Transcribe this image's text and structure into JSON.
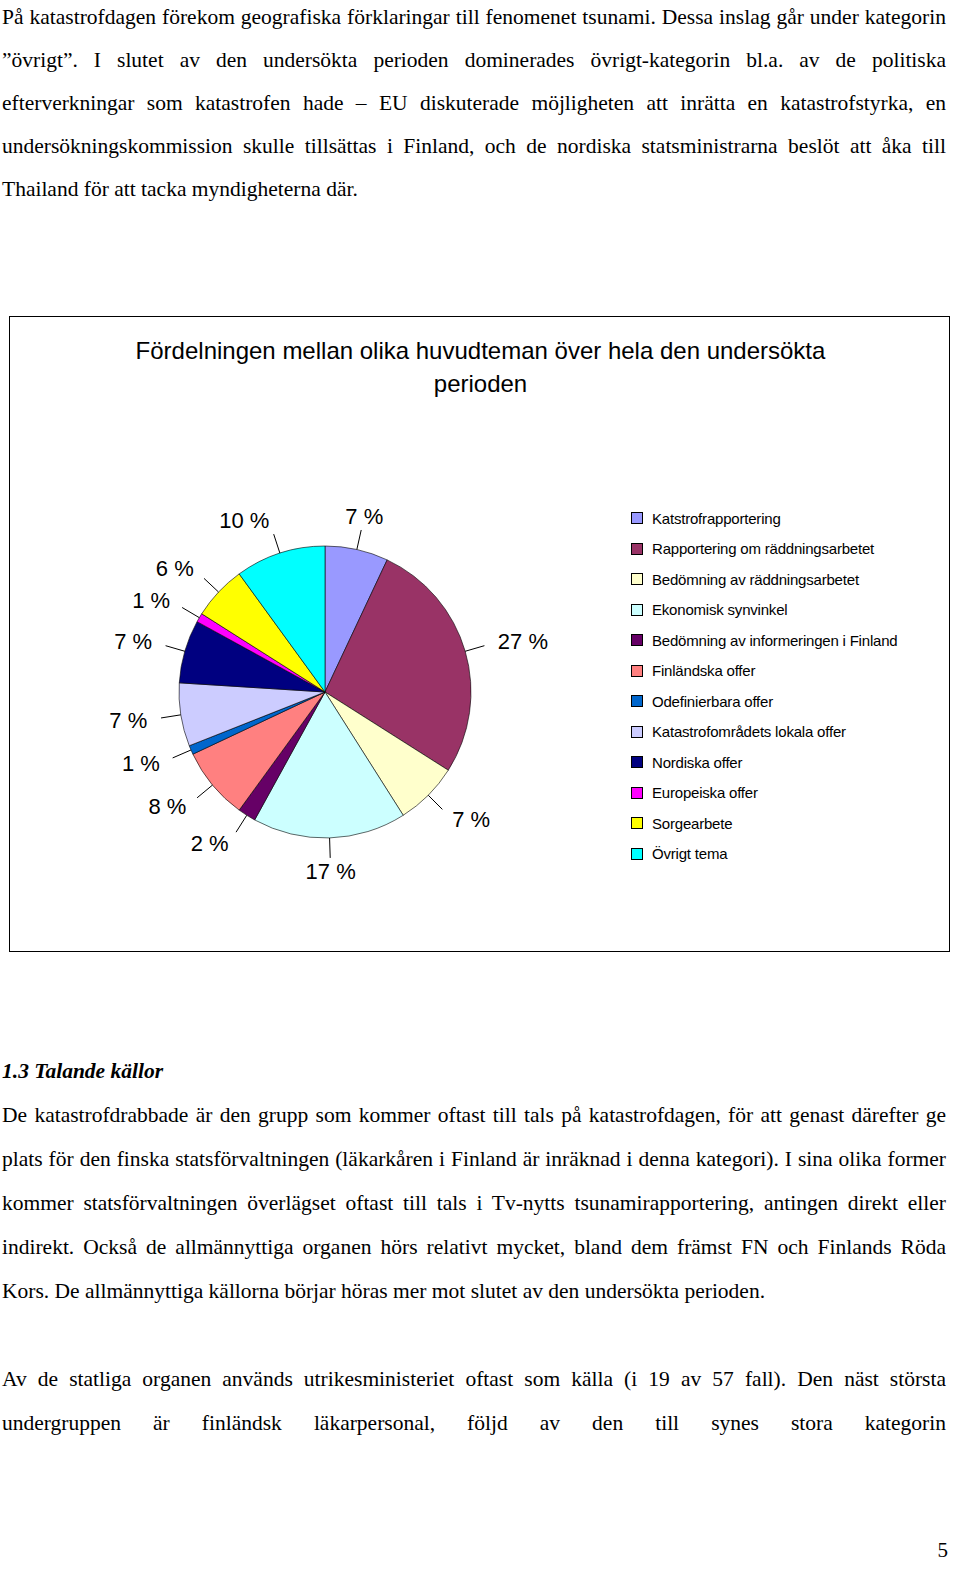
{
  "paragraphs_top": [
    "På katastrofdagen förekom geografiska förklaringar till fenomenet tsunami. Dessa inslag går under kategorin ”övrigt”. I slutet av den undersökta perioden dominerades övrigt-kategorin bl.a. av de politiska efterverkningar som katastrofen hade – EU diskuterade möjligheten att inrätta en katastrofstyrka, en undersökningskommission skulle tillsättas i Finland, och de nordiska statsministrarna beslöt att åka till Thailand för att tacka myndigheterna där."
  ],
  "chart_data": {
    "type": "pie",
    "title": "Fördelningen mellan olika huvudteman över hela den undersökta perioden",
    "categories": [
      "Katstrofrapportering",
      "Rapportering om räddningsarbetet",
      "Bedömning av räddningsarbetet",
      "Ekonomisk synvinkel",
      "Bedömning av informeringen i Finland",
      "Finländska offer",
      "Odefinierbara offer",
      "Katastrofområdets lokala offer",
      "Nordiska offer",
      "Europeiska offer",
      "Sorgearbete",
      "Övrigt tema"
    ],
    "values": [
      7,
      27,
      7,
      17,
      2,
      8,
      1,
      7,
      7,
      1,
      6,
      10
    ],
    "value_labels": [
      "7 %",
      "27 %",
      "7 %",
      "17 %",
      "2 %",
      "8 %",
      "1 %",
      "7 %",
      "7 %",
      "1 %",
      "6 %",
      "10 %"
    ],
    "colors": [
      "#9999FF",
      "#993366",
      "#FFFFCC",
      "#CCFFFF",
      "#660066",
      "#FF8080",
      "#0066CC",
      "#CCCCFF",
      "#000080",
      "#FF00FF",
      "#FFFF00",
      "#00FFFF"
    ],
    "data_labels": true,
    "legend": "right"
  },
  "section": {
    "heading": "1.3 Talande källor",
    "paragraphs": [
      "De katastrofdrabbade är den grupp som kommer oftast till tals på katastrofdagen, för att genast därefter ge plats för den finska statsförvaltningen (läkarkåren i Finland är inräknad i denna kategori). I sina olika former kommer statsförvaltningen överlägset oftast till tals i Tv-nytts tsunamirapportering, antingen direkt eller indirekt. Också de allmännyttiga organen hörs relativt mycket, bland dem främst FN och Finlands Röda Kors. De allmännyttiga källorna börjar höras mer mot slutet av den undersökta perioden.",
      "Av de statliga organen används utrikesministeriet oftast som källa (i 19 av 57 fall). Den näst största undergruppen är finländsk läkarpersonal, följd av den till synes stora kategorin"
    ]
  },
  "page_number": "5"
}
